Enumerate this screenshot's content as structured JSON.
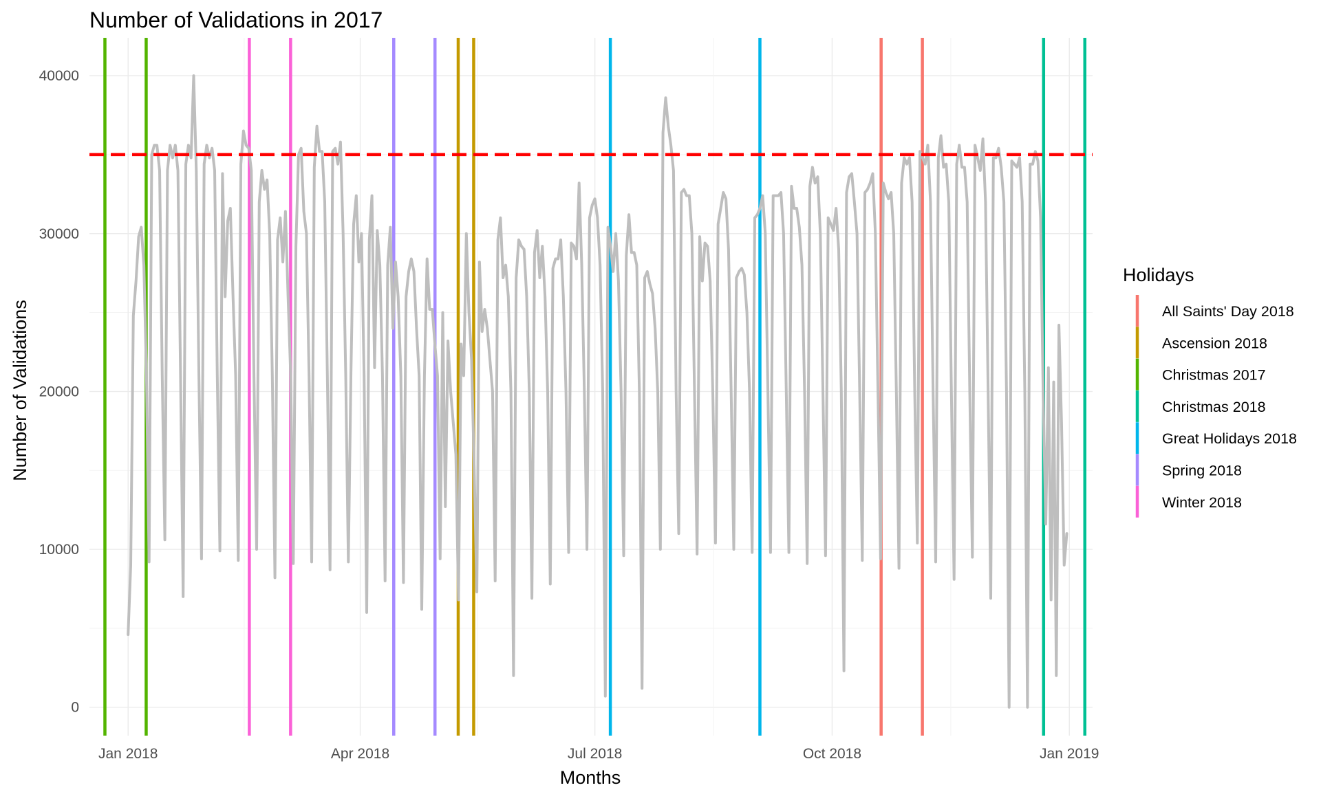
{
  "chart_data": {
    "type": "line",
    "title": "Number of Validations in 2017",
    "xlabel": "Months",
    "ylabel": "Number of Validations",
    "x_range": [
      "2017-12-17",
      "2019-01-10"
    ],
    "ylim": [
      -1800,
      42400
    ],
    "y_ticks": [
      0,
      10000,
      20000,
      30000,
      40000
    ],
    "x_ticks": [
      {
        "date": "2018-01-01",
        "label": "Jan 2018"
      },
      {
        "date": "2018-04-01",
        "label": "Apr 2018"
      },
      {
        "date": "2018-07-01",
        "label": "Jul 2018"
      },
      {
        "date": "2018-10-01",
        "label": "Oct 2018"
      },
      {
        "date": "2019-01-01",
        "label": "Jan 2019"
      }
    ],
    "grid": true,
    "threshold": {
      "value": 35000,
      "color": "#ff0000",
      "style": "dashed"
    },
    "series": [
      {
        "color": "#bebebe",
        "x_start": "2018-01-01",
        "x_end": "2018-12-31",
        "values": [
          4600,
          9000,
          24800,
          27000,
          29800,
          30400,
          28000,
          21000,
          9200,
          35000,
          35600,
          35600,
          34000,
          21000,
          10600,
          34000,
          35600,
          34800,
          35600,
          34000,
          21000,
          7000,
          34400,
          35600,
          34800,
          40000,
          34000,
          21000,
          9400,
          34400,
          35600,
          34800,
          35400,
          34000,
          21000,
          9900,
          33800,
          26000,
          30800,
          31600,
          26000,
          21000,
          9300,
          34400,
          36500,
          35600,
          35400,
          34000,
          21000,
          10000,
          32000,
          34000,
          32800,
          33400,
          30000,
          21000,
          8200,
          29600,
          31000,
          28200,
          31400,
          26000,
          21000,
          9100,
          29200,
          35000,
          35400,
          31400,
          30000,
          21000,
          9200,
          34200,
          36800,
          35200,
          35200,
          32000,
          21000,
          8700,
          35200,
          35400,
          34400,
          35800,
          30000,
          21000,
          9200,
          21200,
          30600,
          32400,
          28200,
          30000,
          21000,
          6000,
          29600,
          32400,
          21500,
          30200,
          28000,
          21000,
          8000,
          28000,
          30400,
          24000,
          28200,
          26000,
          21000,
          7900,
          26000,
          27600,
          28400,
          27600,
          24000,
          21000,
          6200,
          21000,
          28400,
          25200,
          25200,
          23000,
          21000,
          9400,
          25000,
          12700,
          23200,
          20000,
          18000,
          16000,
          6800,
          23000,
          21000,
          30000,
          25000,
          22000,
          15000,
          7300,
          28200,
          23800,
          25200,
          24000,
          22000,
          20000,
          8000,
          29600,
          31000,
          27200,
          28000,
          26000,
          20000,
          2000,
          27200,
          29600,
          29200,
          29000,
          26000,
          20000,
          6900,
          28800,
          30200,
          27200,
          29200,
          26000,
          20000,
          7800,
          27800,
          28400,
          28400,
          29600,
          26000,
          20000,
          9800,
          29400,
          29200,
          28400,
          33200,
          28000,
          20000,
          10000,
          31000,
          31800,
          32200,
          31000,
          28000,
          20000,
          700,
          30400,
          29200,
          27600,
          30000,
          27000,
          20000,
          9600,
          28600,
          31200,
          28800,
          28800,
          28000,
          20000,
          1200,
          27200,
          27600,
          26800,
          26200,
          24000,
          20000,
          10000,
          36400,
          38600,
          36800,
          35600,
          34000,
          20000,
          11000,
          32600,
          32800,
          32400,
          32400,
          30000,
          20000,
          9700,
          29800,
          27000,
          29400,
          29200,
          27000,
          20000,
          10400,
          30600,
          31600,
          32600,
          32200,
          29000,
          20000,
          10000,
          27200,
          27600,
          27800,
          27400,
          25000,
          20000,
          9800,
          31000,
          31200,
          31600,
          32400,
          30000,
          20000,
          9800,
          32400,
          32400,
          32400,
          32600,
          30000,
          20000,
          9800,
          33000,
          31600,
          31600,
          30400,
          28000,
          20000,
          9100,
          33000,
          34200,
          33200,
          33600,
          30000,
          20000,
          9600,
          31000,
          30600,
          30200,
          31600,
          29000,
          20000,
          2300,
          32600,
          33600,
          33800,
          32000,
          30000,
          20000,
          9300,
          32600,
          32800,
          33200,
          33800,
          30000,
          20000,
          9400,
          33200,
          32600,
          32200,
          32600,
          30000,
          20000,
          8800,
          33200,
          34800,
          34400,
          34800,
          32000,
          20000,
          10400,
          35200,
          34800,
          34400,
          35600,
          32000,
          20000,
          9200,
          34800,
          36200,
          34200,
          34400,
          32000,
          20000,
          8100,
          34400,
          35600,
          34200,
          34200,
          32000,
          20000,
          9500,
          35600,
          34800,
          34000,
          36000,
          32000,
          20000,
          6900,
          34800,
          34800,
          35400,
          34200,
          32000,
          20000,
          0,
          34600,
          34400,
          34200,
          34800,
          32000,
          20000,
          0,
          34400,
          34400,
          35200,
          34600,
          31000,
          19800,
          11600,
          21500,
          6800,
          20600,
          2000,
          24200,
          18000,
          9000,
          11000
        ]
      }
    ],
    "holidays": [
      {
        "name": "All Saints' Day 2018",
        "color": "#f8766d",
        "dates": [
          "2018-10-20",
          "2018-11-05"
        ]
      },
      {
        "name": "Ascension 2018",
        "color": "#c49a00",
        "dates": [
          "2018-05-09",
          "2018-05-15"
        ]
      },
      {
        "name": "Christmas 2017",
        "color": "#53b400",
        "dates": [
          "2017-12-23",
          "2018-01-08"
        ]
      },
      {
        "name": "Christmas 2018",
        "color": "#00c094",
        "dates": [
          "2018-12-22",
          "2019-01-07"
        ]
      },
      {
        "name": "Great Holidays 2018",
        "color": "#00b6eb",
        "dates": [
          "2018-07-07",
          "2018-09-03"
        ]
      },
      {
        "name": "Spring 2018",
        "color": "#a58aff",
        "dates": [
          "2018-04-14",
          "2018-04-30"
        ]
      },
      {
        "name": "Winter 2018",
        "color": "#fb61d7",
        "dates": [
          "2018-02-17",
          "2018-03-05"
        ]
      }
    ],
    "legend": {
      "title": "Holidays",
      "position": "right"
    }
  }
}
